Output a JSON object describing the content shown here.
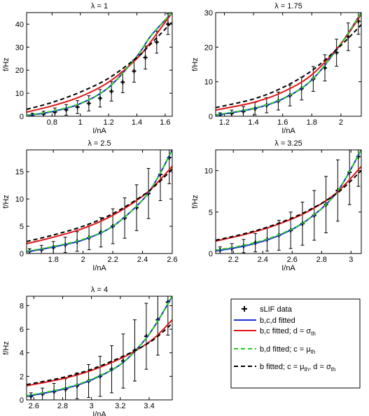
{
  "figure": {
    "legend": {
      "entries": [
        {
          "label": "sLIF data",
          "style": "plus",
          "color": "#000000"
        },
        {
          "label": "b,c,d fitted",
          "style": "solid",
          "color": "#1f2fd0"
        },
        {
          "label": "b,c fitted; d = σ",
          "sub": "th",
          "style": "solid",
          "color": "#e01818"
        },
        {
          "label": "b,d fitted; c = μ",
          "sub": "th",
          "style": "dashed",
          "color": "#22cc22"
        },
        {
          "label": "b fitted; c = μ",
          "sub": "th",
          "label2": ", d = σ",
          "sub2": "th",
          "style": "dashed",
          "color": "#000000"
        }
      ]
    }
  },
  "chart_data": [
    {
      "type": "line",
      "title": "λ = 1",
      "xlabel": "I/nA",
      "ylabel": "f/Hz",
      "xlim": [
        0.62,
        1.65
      ],
      "ylim": [
        0,
        45
      ],
      "xticks": [
        0.8,
        1,
        1.2,
        1.4,
        1.6
      ],
      "xticklabels": [
        "0.8",
        "1",
        "1.2",
        "1.4",
        "1.6"
      ],
      "yticks": [
        0,
        10,
        20,
        30,
        40
      ],
      "yticklabels": [
        "0",
        "10",
        "20",
        "30",
        "40"
      ],
      "series": [
        {
          "style": "blue",
          "points": [
            [
              0.62,
              0.3
            ],
            [
              0.8,
              2.0
            ],
            [
              1.0,
              5.5
            ],
            [
              1.2,
              12.5
            ],
            [
              1.4,
              26.0
            ],
            [
              1.5,
              35.0
            ],
            [
              1.65,
              45.0
            ]
          ]
        },
        {
          "style": "red",
          "points": [
            [
              0.62,
              1.8
            ],
            [
              0.8,
              4.5
            ],
            [
              1.0,
              8.5
            ],
            [
              1.2,
              14.8
            ],
            [
              1.4,
              25.0
            ],
            [
              1.5,
              32.5
            ],
            [
              1.65,
              45.0
            ]
          ]
        },
        {
          "style": "green",
          "points": [
            [
              0.62,
              0.4
            ],
            [
              0.8,
              2.2
            ],
            [
              1.0,
              5.6
            ],
            [
              1.2,
              12.5
            ],
            [
              1.4,
              26.0
            ],
            [
              1.5,
              35.0
            ],
            [
              1.65,
              45.0
            ]
          ]
        },
        {
          "style": "black",
          "points": [
            [
              0.62,
              3.0
            ],
            [
              0.8,
              6.0
            ],
            [
              1.0,
              10.5
            ],
            [
              1.2,
              16.5
            ],
            [
              1.4,
              25.5
            ],
            [
              1.5,
              31.5
            ],
            [
              1.65,
              41.0
            ]
          ]
        }
      ],
      "data_points": [
        {
          "x": 0.66,
          "y": 0.5,
          "err": 0.8
        },
        {
          "x": 0.74,
          "y": 1.0,
          "err": 1.2
        },
        {
          "x": 0.82,
          "y": 1.8,
          "err": 1.8
        },
        {
          "x": 0.9,
          "y": 2.8,
          "err": 2.3
        },
        {
          "x": 0.98,
          "y": 4.0,
          "err": 2.8
        },
        {
          "x": 1.06,
          "y": 5.6,
          "err": 3.3
        },
        {
          "x": 1.14,
          "y": 7.8,
          "err": 3.8
        },
        {
          "x": 1.22,
          "y": 10.8,
          "err": 4.2
        },
        {
          "x": 1.3,
          "y": 14.8,
          "err": 4.6
        },
        {
          "x": 1.38,
          "y": 19.6,
          "err": 4.8
        },
        {
          "x": 1.46,
          "y": 25.5,
          "err": 5.0
        },
        {
          "x": 1.54,
          "y": 32.2,
          "err": 4.8
        },
        {
          "x": 1.62,
          "y": 40.0,
          "err": 4.5
        }
      ]
    },
    {
      "type": "line",
      "title": "λ = 1.75",
      "xlabel": "I/nA",
      "ylabel": "f/Hz",
      "xlim": [
        1.14,
        2.14
      ],
      "ylim": [
        0,
        30
      ],
      "xticks": [
        1.2,
        1.4,
        1.6,
        1.8,
        2
      ],
      "xticklabels": [
        "1.2",
        "1.4",
        "1.6",
        "1.8",
        "2"
      ],
      "yticks": [
        0,
        10,
        20,
        30
      ],
      "yticklabels": [
        "0",
        "10",
        "20",
        "30"
      ],
      "series": [
        {
          "style": "blue",
          "points": [
            [
              1.14,
              0.3
            ],
            [
              1.4,
              2.2
            ],
            [
              1.6,
              5.0
            ],
            [
              1.8,
              10.5
            ],
            [
              2.0,
              21.0
            ],
            [
              2.14,
              30.0
            ]
          ]
        },
        {
          "style": "red",
          "points": [
            [
              1.14,
              1.8
            ],
            [
              1.4,
              4.0
            ],
            [
              1.6,
              7.0
            ],
            [
              1.8,
              12.0
            ],
            [
              2.0,
              21.0
            ],
            [
              2.14,
              29.5
            ]
          ]
        },
        {
          "style": "green",
          "points": [
            [
              1.14,
              0.4
            ],
            [
              1.4,
              2.3
            ],
            [
              1.6,
              5.1
            ],
            [
              1.8,
              10.5
            ],
            [
              2.0,
              21.0
            ],
            [
              2.14,
              30.0
            ]
          ]
        },
        {
          "style": "black",
          "points": [
            [
              1.14,
              2.5
            ],
            [
              1.4,
              5.0
            ],
            [
              1.6,
              8.3
            ],
            [
              1.8,
              13.2
            ],
            [
              2.0,
              20.5
            ],
            [
              2.14,
              26.5
            ]
          ]
        }
      ],
      "data_points": [
        {
          "x": 1.17,
          "y": 0.4,
          "err": 0.6
        },
        {
          "x": 1.25,
          "y": 0.8,
          "err": 1.0
        },
        {
          "x": 1.33,
          "y": 1.4,
          "err": 1.4
        },
        {
          "x": 1.41,
          "y": 2.2,
          "err": 1.8
        },
        {
          "x": 1.49,
          "y": 3.2,
          "err": 2.2
        },
        {
          "x": 1.57,
          "y": 4.4,
          "err": 2.6
        },
        {
          "x": 1.65,
          "y": 6.0,
          "err": 3.0
        },
        {
          "x": 1.73,
          "y": 8.0,
          "err": 3.3
        },
        {
          "x": 1.81,
          "y": 10.8,
          "err": 3.6
        },
        {
          "x": 1.89,
          "y": 14.0,
          "err": 3.8
        },
        {
          "x": 1.97,
          "y": 18.4,
          "err": 3.9
        },
        {
          "x": 2.05,
          "y": 23.0,
          "err": 4.0
        },
        {
          "x": 2.12,
          "y": 27.5,
          "err": 3.8
        }
      ]
    },
    {
      "type": "line",
      "title": "λ = 2.5",
      "xlabel": "I/nA",
      "ylabel": "f/Hz",
      "xlim": [
        1.62,
        2.6
      ],
      "ylim": [
        0,
        19
      ],
      "xticks": [
        1.8,
        2,
        2.2,
        2.4,
        2.6
      ],
      "xticklabels": [
        "1.8",
        "2",
        "2.2",
        "2.4",
        "2.6"
      ],
      "yticks": [
        0,
        5,
        10,
        15
      ],
      "yticklabels": [
        "0",
        "5",
        "10",
        "15"
      ],
      "series": [
        {
          "style": "blue",
          "points": [
            [
              1.62,
              0.3
            ],
            [
              1.8,
              1.2
            ],
            [
              2.0,
              2.5
            ],
            [
              2.2,
              5.0
            ],
            [
              2.4,
              9.8
            ],
            [
              2.5,
              13.8
            ],
            [
              2.6,
              19.0
            ]
          ]
        },
        {
          "style": "red",
          "points": [
            [
              1.62,
              1.8
            ],
            [
              1.8,
              3.0
            ],
            [
              2.0,
              4.6
            ],
            [
              2.2,
              7.0
            ],
            [
              2.4,
              10.5
            ],
            [
              2.5,
              13.0
            ],
            [
              2.6,
              16.0
            ]
          ]
        },
        {
          "style": "green",
          "points": [
            [
              1.62,
              0.4
            ],
            [
              1.8,
              1.3
            ],
            [
              2.0,
              2.6
            ],
            [
              2.2,
              5.0
            ],
            [
              2.4,
              9.8
            ],
            [
              2.5,
              13.8
            ],
            [
              2.6,
              19.0
            ]
          ]
        },
        {
          "style": "black",
          "points": [
            [
              1.62,
              2.2
            ],
            [
              1.8,
              3.4
            ],
            [
              2.0,
              5.0
            ],
            [
              2.2,
              7.3
            ],
            [
              2.4,
              10.6
            ],
            [
              2.5,
              12.8
            ],
            [
              2.6,
              15.5
            ]
          ]
        }
      ],
      "data_points": [
        {
          "x": 1.64,
          "y": 0.4,
          "err": 0.5
        },
        {
          "x": 1.72,
          "y": 0.7,
          "err": 0.8
        },
        {
          "x": 1.8,
          "y": 1.1,
          "err": 1.1
        },
        {
          "x": 1.88,
          "y": 1.6,
          "err": 1.4
        },
        {
          "x": 1.96,
          "y": 2.2,
          "err": 1.8
        },
        {
          "x": 2.04,
          "y": 2.9,
          "err": 2.2
        },
        {
          "x": 2.12,
          "y": 3.9,
          "err": 2.7
        },
        {
          "x": 2.2,
          "y": 5.0,
          "err": 3.2
        },
        {
          "x": 2.28,
          "y": 6.5,
          "err": 3.7
        },
        {
          "x": 2.36,
          "y": 8.4,
          "err": 4.2
        },
        {
          "x": 2.44,
          "y": 11.0,
          "err": 4.6
        },
        {
          "x": 2.52,
          "y": 14.5,
          "err": 4.8
        },
        {
          "x": 2.58,
          "y": 17.6,
          "err": 4.8
        }
      ]
    },
    {
      "type": "line",
      "title": "λ = 3.25",
      "xlabel": "I/nA",
      "ylabel": "f/Hz",
      "xlim": [
        2.08,
        3.07
      ],
      "ylim": [
        0,
        12.5
      ],
      "xticks": [
        2.2,
        2.4,
        2.6,
        2.8,
        3
      ],
      "xticklabels": [
        "2.2",
        "2.4",
        "2.6",
        "2.8",
        "3"
      ],
      "yticks": [
        0,
        5,
        10
      ],
      "yticklabels": [
        "0",
        "5",
        "10"
      ],
      "series": [
        {
          "style": "blue",
          "points": [
            [
              2.08,
              0.3
            ],
            [
              2.3,
              1.0
            ],
            [
              2.5,
              2.1
            ],
            [
              2.7,
              4.0
            ],
            [
              2.9,
              7.3
            ],
            [
              3.07,
              12.5
            ]
          ]
        },
        {
          "style": "red",
          "points": [
            [
              2.08,
              1.5
            ],
            [
              2.3,
              2.4
            ],
            [
              2.5,
              3.5
            ],
            [
              2.7,
              5.0
            ],
            [
              2.9,
              7.3
            ],
            [
              3.07,
              10.5
            ]
          ]
        },
        {
          "style": "green",
          "points": [
            [
              2.08,
              0.4
            ],
            [
              2.3,
              1.1
            ],
            [
              2.5,
              2.2
            ],
            [
              2.7,
              4.0
            ],
            [
              2.9,
              7.3
            ],
            [
              3.07,
              12.5
            ]
          ]
        },
        {
          "style": "black",
          "points": [
            [
              2.08,
              1.6
            ],
            [
              2.3,
              2.5
            ],
            [
              2.5,
              3.6
            ],
            [
              2.7,
              5.1
            ],
            [
              2.9,
              7.2
            ],
            [
              3.07,
              10.0
            ]
          ]
        }
      ],
      "data_points": [
        {
          "x": 2.11,
          "y": 0.4,
          "err": 0.4
        },
        {
          "x": 2.19,
          "y": 0.6,
          "err": 0.6
        },
        {
          "x": 2.27,
          "y": 0.9,
          "err": 0.8
        },
        {
          "x": 2.35,
          "y": 1.3,
          "err": 1.1
        },
        {
          "x": 2.43,
          "y": 1.7,
          "err": 1.4
        },
        {
          "x": 2.51,
          "y": 2.2,
          "err": 1.8
        },
        {
          "x": 2.59,
          "y": 2.8,
          "err": 2.2
        },
        {
          "x": 2.67,
          "y": 3.6,
          "err": 2.6
        },
        {
          "x": 2.75,
          "y": 4.6,
          "err": 3.0
        },
        {
          "x": 2.83,
          "y": 5.9,
          "err": 3.4
        },
        {
          "x": 2.91,
          "y": 7.6,
          "err": 3.7
        },
        {
          "x": 2.99,
          "y": 9.8,
          "err": 3.9
        },
        {
          "x": 3.05,
          "y": 11.7,
          "err": 3.6
        }
      ]
    },
    {
      "type": "line",
      "title": "λ = 4",
      "xlabel": "I/nA",
      "ylabel": "f/Hz",
      "xlim": [
        2.55,
        3.56
      ],
      "ylim": [
        0,
        8.8
      ],
      "xticks": [
        2.6,
        2.8,
        3,
        3.2,
        3.4
      ],
      "xticklabels": [
        "2.6",
        "2.8",
        "3",
        "3.2",
        "3.4"
      ],
      "yticks": [
        0,
        2,
        4,
        6,
        8
      ],
      "yticklabels": [
        "0",
        "2",
        "4",
        "6",
        "8"
      ],
      "series": [
        {
          "style": "blue",
          "points": [
            [
              2.55,
              0.3
            ],
            [
              2.8,
              0.9
            ],
            [
              3.0,
              1.7
            ],
            [
              3.2,
              3.0
            ],
            [
              3.35,
              4.8
            ],
            [
              3.45,
              6.5
            ],
            [
              3.56,
              8.8
            ]
          ]
        },
        {
          "style": "red",
          "points": [
            [
              2.55,
              1.2
            ],
            [
              2.8,
              1.8
            ],
            [
              3.0,
              2.5
            ],
            [
              3.2,
              3.5
            ],
            [
              3.35,
              4.5
            ],
            [
              3.45,
              5.4
            ],
            [
              3.56,
              6.8
            ]
          ]
        },
        {
          "style": "green",
          "points": [
            [
              2.55,
              0.35
            ],
            [
              2.8,
              0.95
            ],
            [
              3.0,
              1.75
            ],
            [
              3.2,
              3.0
            ],
            [
              3.35,
              4.8
            ],
            [
              3.45,
              6.5
            ],
            [
              3.56,
              8.8
            ]
          ]
        },
        {
          "style": "black",
          "points": [
            [
              2.55,
              1.3
            ],
            [
              2.8,
              1.9
            ],
            [
              3.0,
              2.6
            ],
            [
              3.2,
              3.6
            ],
            [
              3.35,
              4.5
            ],
            [
              3.45,
              5.3
            ],
            [
              3.56,
              6.5
            ]
          ]
        }
      ],
      "data_points": [
        {
          "x": 2.58,
          "y": 0.3,
          "err": 0.3
        },
        {
          "x": 2.66,
          "y": 0.5,
          "err": 0.5
        },
        {
          "x": 2.74,
          "y": 0.7,
          "err": 0.7
        },
        {
          "x": 2.82,
          "y": 0.9,
          "err": 0.9
        },
        {
          "x": 2.9,
          "y": 1.2,
          "err": 1.1
        },
        {
          "x": 2.98,
          "y": 1.6,
          "err": 1.4
        },
        {
          "x": 3.06,
          "y": 2.0,
          "err": 1.7
        },
        {
          "x": 3.14,
          "y": 2.6,
          "err": 2.0
        },
        {
          "x": 3.22,
          "y": 3.3,
          "err": 2.3
        },
        {
          "x": 3.3,
          "y": 4.2,
          "err": 2.6
        },
        {
          "x": 3.38,
          "y": 5.4,
          "err": 2.8
        },
        {
          "x": 3.46,
          "y": 6.8,
          "err": 3.0
        },
        {
          "x": 3.53,
          "y": 8.3,
          "err": 2.8
        }
      ]
    }
  ]
}
